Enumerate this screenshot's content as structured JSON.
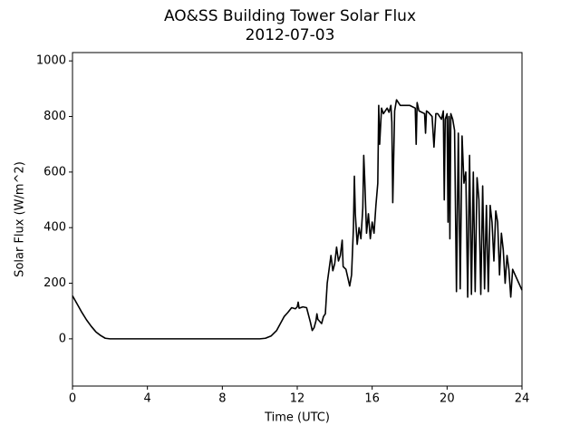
{
  "chart_data": {
    "type": "line",
    "title": "AO&SS Building Tower Solar Flux",
    "subtitle": "2012-07-03",
    "x_label": "Time (UTC)",
    "y_label": "Solar Flux (W/m^2)",
    "xlim": [
      0,
      24
    ],
    "xticks": [
      0,
      4,
      8,
      12,
      16,
      20,
      24
    ],
    "ylim": [
      -170,
      1030
    ],
    "yticks": [
      0,
      200,
      400,
      600,
      800,
      1000
    ],
    "grid": false,
    "series": [
      {
        "color": "#000000",
        "x": [
          0,
          0.25,
          0.5,
          0.75,
          1.0,
          1.25,
          1.5,
          1.75,
          2,
          10,
          10.3,
          10.6,
          10.9,
          11.1,
          11.3,
          11.5,
          11.7,
          11.9,
          12.0,
          12.05,
          12.1,
          12.3,
          12.5,
          12.7,
          12.8,
          12.9,
          13.0,
          13.05,
          13.1,
          13.3,
          13.4,
          13.5,
          13.6,
          13.8,
          13.9,
          14.0,
          14.1,
          14.2,
          14.3,
          14.4,
          14.45,
          14.6,
          14.8,
          14.9,
          15.0,
          15.05,
          15.1,
          15.2,
          15.3,
          15.4,
          15.5,
          15.55,
          15.6,
          15.7,
          15.8,
          15.9,
          16.0,
          16.1,
          16.2,
          16.3,
          16.35,
          16.4,
          16.5,
          16.6,
          16.8,
          16.9,
          17.0,
          17.05,
          17.1,
          17.2,
          17.3,
          17.5,
          18.0,
          18.3,
          18.35,
          18.4,
          18.5,
          18.8,
          18.85,
          18.9,
          19.0,
          19.2,
          19.3,
          19.4,
          19.5,
          19.7,
          19.8,
          19.85,
          19.9,
          20.0,
          20.05,
          20.1,
          20.15,
          20.2,
          20.3,
          20.4,
          20.5,
          20.6,
          20.7,
          20.8,
          20.9,
          21.0,
          21.1,
          21.2,
          21.3,
          21.4,
          21.5,
          21.6,
          21.7,
          21.8,
          21.9,
          22.0,
          22.1,
          22.2,
          22.3,
          22.4,
          22.5,
          22.6,
          22.7,
          22.8,
          22.9,
          23.0,
          23.1,
          23.2,
          23.3,
          23.4,
          23.5,
          23.7,
          24.0
        ],
        "values": [
          155,
          125,
          95,
          68,
          45,
          25,
          12,
          2,
          0,
          0,
          2,
          10,
          30,
          55,
          80,
          95,
          112,
          108,
          115,
          132,
          110,
          115,
          112,
          60,
          30,
          40,
          65,
          90,
          70,
          55,
          80,
          90,
          200,
          300,
          245,
          270,
          330,
          280,
          300,
          355,
          260,
          250,
          190,
          230,
          400,
          585,
          450,
          340,
          400,
          360,
          470,
          660,
          580,
          380,
          450,
          360,
          420,
          380,
          480,
          560,
          840,
          700,
          830,
          810,
          830,
          815,
          840,
          780,
          490,
          820,
          860,
          840,
          840,
          830,
          700,
          850,
          820,
          810,
          740,
          820,
          815,
          800,
          690,
          810,
          810,
          790,
          820,
          500,
          790,
          810,
          420,
          800,
          360,
          810,
          790,
          750,
          170,
          740,
          180,
          730,
          560,
          600,
          150,
          660,
          160,
          600,
          170,
          580,
          500,
          160,
          550,
          180,
          480,
          170,
          480,
          420,
          280,
          460,
          420,
          230,
          380,
          320,
          200,
          300,
          250,
          150,
          250,
          220,
          175
        ]
      }
    ]
  }
}
